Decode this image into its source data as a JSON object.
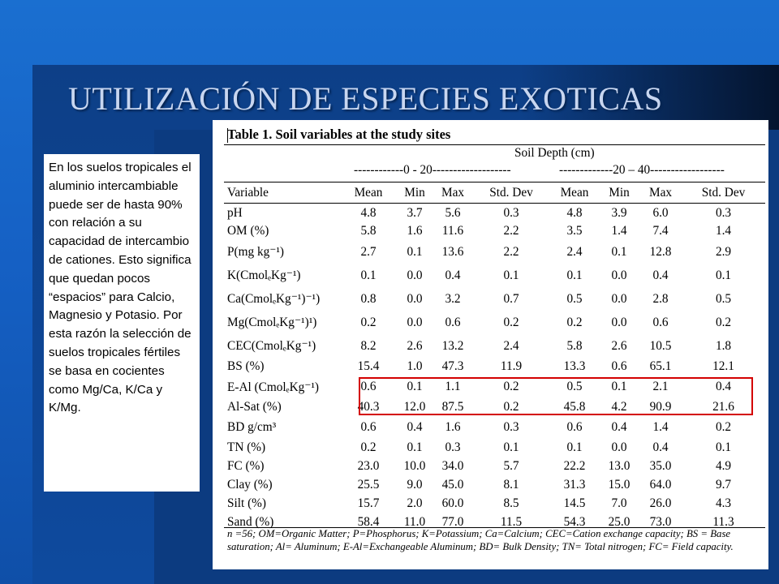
{
  "slide": {
    "title": "UTILIZACIÓN DE ESPECIES EXOTICAS",
    "note": "En los suelos tropicales el aluminio intercambiable puede ser de hasta 90% con relación a su capacidad de intercambio de cationes. Esto significa que quedan pocos “espacios” para Calcio, Magnesio y Potasio. Por esta razón la selección de suelos tropicales fértiles se basa en cocientes como Mg/Ca, K/Ca y K/Mg."
  },
  "table": {
    "caption": "Table 1.  Soil variables at the study sites",
    "group_header": "Soil Depth (cm)",
    "depth1": "------------0 - 20-------------------",
    "depth2": "-------------20 – 40------------------",
    "headers": [
      "Variable",
      "Mean",
      "Min",
      "Max",
      "Std. Dev",
      "Mean",
      "Min",
      "Max",
      "Std. Dev"
    ],
    "rows": [
      {
        "label": "pH",
        "values": [
          "4.8",
          "3.7",
          "5.6",
          "0.3",
          "4.8",
          "3.9",
          "6.0",
          "0.3"
        ],
        "h": 22
      },
      {
        "label": "OM (%)",
        "values": [
          "5.8",
          "1.6",
          "11.6",
          "2.2",
          "3.5",
          "1.4",
          "7.4",
          "1.4"
        ],
        "h": 22
      },
      {
        "label": "P(mg kg⁻¹)",
        "values": [
          "2.7",
          "0.1",
          "13.6",
          "2.2",
          "2.4",
          "0.1",
          "12.8",
          "2.9"
        ],
        "h": 29
      },
      {
        "label": "K(CmolₑKg⁻¹)",
        "values": [
          "0.1",
          "0.0",
          "0.4",
          "0.1",
          "0.1",
          "0.0",
          "0.4",
          "0.1"
        ],
        "h": 29
      },
      {
        "label": "Ca(CmolₑKg⁻¹)⁻¹)",
        "values": [
          "0.8",
          "0.0",
          "3.2",
          "0.7",
          "0.5",
          "0.0",
          "2.8",
          "0.5"
        ],
        "h": 29
      },
      {
        "label": "Mg(CmolₑKg⁻¹)¹)",
        "values": [
          "0.2",
          "0.0",
          "0.6",
          "0.2",
          "0.2",
          "0.0",
          "0.6",
          "0.2"
        ],
        "h": 29
      },
      {
        "label": "CEC(CmolₑKg⁻¹)",
        "values": [
          "8.2",
          "2.6",
          "13.2",
          "2.4",
          "5.8",
          "2.6",
          "10.5",
          "1.8"
        ],
        "h": 29
      },
      {
        "label": "BS (%)",
        "values": [
          "15.4",
          "1.0",
          "47.3",
          "11.9",
          "13.3",
          "0.6",
          "65.1",
          "12.1"
        ],
        "h": 22
      },
      {
        "label": "E-Al (CmolₑKg⁻¹)",
        "values": [
          "0.6",
          "0.1",
          "1.1",
          "0.2",
          "0.5",
          "0.1",
          "2.1",
          "0.4"
        ],
        "h": 28
      },
      {
        "label": "Al-Sat (%)",
        "values": [
          "40.3",
          "12.0",
          "87.5",
          "0.2",
          "45.8",
          "4.2",
          "90.9",
          "21.6"
        ],
        "h": 22
      },
      {
        "label": "BD g/cm³",
        "values": [
          "0.6",
          "0.4",
          "1.6",
          "0.3",
          "0.6",
          "0.4",
          "1.4",
          "0.2"
        ],
        "h": 27
      },
      {
        "label": "TN (%)",
        "values": [
          "0.2",
          "0.1",
          "0.3",
          "0.1",
          "0.1",
          "0.0",
          "0.4",
          "0.1"
        ],
        "h": 23
      },
      {
        "label": "FC (%)",
        "values": [
          "23.0",
          "10.0",
          "34.0",
          "5.7",
          "22.2",
          "13.0",
          "35.0",
          "4.9"
        ],
        "h": 23
      },
      {
        "label": "Clay (%)",
        "values": [
          "25.5",
          "9.0",
          "45.0",
          "8.1",
          "31.3",
          "15.0",
          "64.0",
          "9.7"
        ],
        "h": 23
      },
      {
        "label": "Silt (%)",
        "values": [
          "15.7",
          "2.0",
          "60.0",
          "8.5",
          "14.5",
          "7.0",
          "26.0",
          "4.3"
        ],
        "h": 23
      },
      {
        "label": "Sand (%)",
        "values": [
          "58.4",
          "11.0",
          "77.0",
          "11.5",
          "54.3",
          "25.0",
          "73.0",
          "11.3"
        ],
        "h": 23
      }
    ],
    "footnote": "n =56; OM=Organic Matter; P=Phosphorus; K=Potassium; Ca=Calcium; CEC=Cation exchange capacity; BS = Base saturation; Al= Aluminum; E-Al=Exchangeable Aluminum; BD= Bulk Density; TN= Total nitrogen; FC= Field capacity."
  },
  "colors": {
    "background": "#1565c0",
    "title": "#c8d6f0",
    "highlight": "#d40000"
  }
}
